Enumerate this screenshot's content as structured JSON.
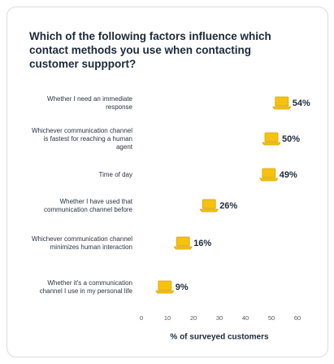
{
  "chart_data": {
    "type": "dot",
    "title": "Which of the following factors influence which contact methods you use when contacting customer suppport?",
    "categories": [
      "Whether I need an immediate response",
      "Whichever communication channel is fastest for reaching a human agent",
      "Time of day",
      "Whether I have used that communication channel before",
      "Whichever communication channel minimizes human interaction",
      "Whether it's a communication channel I use in my personal life"
    ],
    "values": [
      54,
      50,
      49,
      26,
      16,
      9
    ],
    "value_labels": [
      "54%",
      "50%",
      "49%",
      "26%",
      "16%",
      "9%"
    ],
    "color": "#f5c211",
    "xlim": [
      0,
      60
    ],
    "xticks": [
      0,
      10,
      20,
      30,
      40,
      50,
      60
    ],
    "xlabel": "% of surveyed customers"
  }
}
